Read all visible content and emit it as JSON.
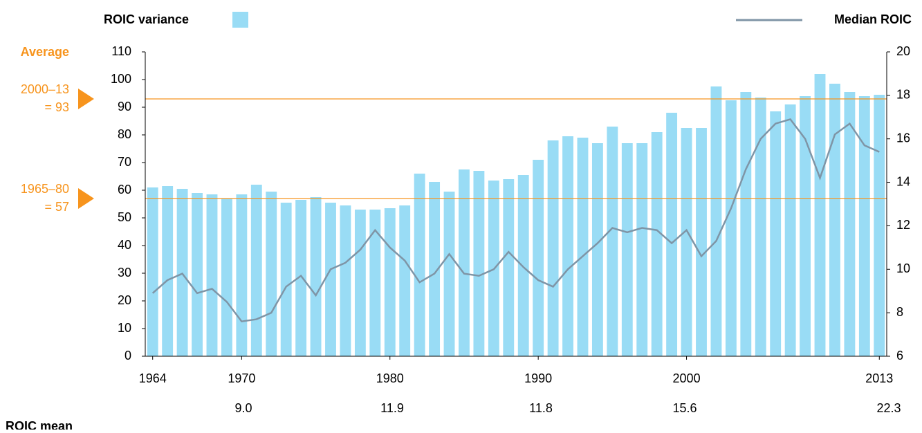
{
  "chart_data": {
    "type": "bar-line",
    "x": [
      1964,
      1965,
      1966,
      1967,
      1968,
      1969,
      1970,
      1971,
      1972,
      1973,
      1974,
      1975,
      1976,
      1977,
      1978,
      1979,
      1980,
      1981,
      1982,
      1983,
      1984,
      1985,
      1986,
      1987,
      1988,
      1989,
      1990,
      1991,
      1992,
      1993,
      1994,
      1995,
      1996,
      1997,
      1998,
      1999,
      2000,
      2001,
      2002,
      2003,
      2004,
      2005,
      2006,
      2007,
      2008,
      2009,
      2010,
      2011,
      2012,
      2013
    ],
    "xlim": [
      1963.5,
      2013.5
    ],
    "xticks": [
      1964,
      1970,
      1980,
      1990,
      2000,
      2013
    ],
    "ylim": [
      0,
      110
    ],
    "yticks": [
      0,
      10,
      20,
      30,
      40,
      50,
      60,
      70,
      80,
      90,
      100,
      110
    ],
    "y2lim": [
      6,
      20
    ],
    "y2ticks": [
      6,
      8,
      10,
      12,
      14,
      16,
      18,
      20
    ],
    "series": [
      {
        "name": "ROIC variance",
        "type": "bar",
        "color": "#99dcf5",
        "values": [
          61,
          61.5,
          60.5,
          59,
          58.5,
          57,
          58.5,
          62,
          59.5,
          55.5,
          56.5,
          57.5,
          55.5,
          54.5,
          53,
          53,
          53.5,
          54.5,
          66,
          63,
          59.5,
          67.5,
          67,
          63.5,
          64,
          65.5,
          71,
          78,
          79.5,
          79,
          77,
          83,
          77,
          77,
          81,
          88,
          82.5,
          82.5,
          97.5,
          92.5,
          95.5,
          93.5,
          88.5,
          91,
          94,
          102,
          98.5,
          95.5,
          94,
          94.5
        ]
      },
      {
        "name": "Median ROIC",
        "type": "line",
        "axis": "y2",
        "color": "#7f95a6",
        "values": [
          8.9,
          9.5,
          9.8,
          8.9,
          9.1,
          8.5,
          7.6,
          7.7,
          8.0,
          9.2,
          9.7,
          8.8,
          10.0,
          10.3,
          10.9,
          11.8,
          11.0,
          10.4,
          9.4,
          9.8,
          10.7,
          9.8,
          9.7,
          10.0,
          10.8,
          10.1,
          9.5,
          9.2,
          10.0,
          10.6,
          11.2,
          11.9,
          11.7,
          11.9,
          11.8,
          11.2,
          11.8,
          10.6,
          11.3,
          12.8,
          14.6,
          16.0,
          16.7,
          16.9,
          16.0,
          14.2,
          16.2,
          16.7,
          15.7,
          15.4
        ]
      }
    ],
    "averages_title": "Average",
    "averages": [
      {
        "label": [
          "2000–13",
          "= 93"
        ],
        "value": 93,
        "color": "#f7941d"
      },
      {
        "label": [
          "1965–80",
          "= 57"
        ],
        "value": 57,
        "color": "#f7941d"
      }
    ],
    "roic_mean": {
      "label": "ROIC mean",
      "values": [
        "9.0",
        "11.9",
        "11.8",
        "15.6",
        "22.3"
      ]
    }
  }
}
